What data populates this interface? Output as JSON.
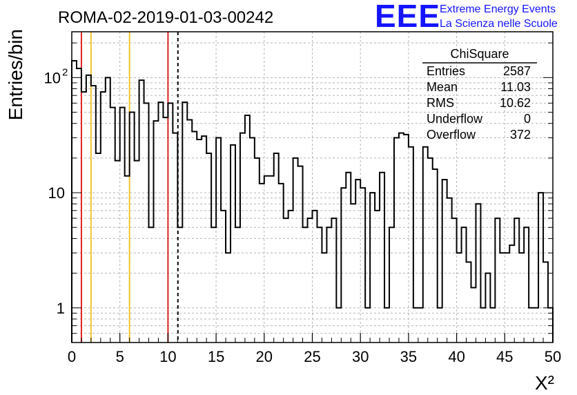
{
  "chart_data": {
    "type": "bar",
    "title": "ROMA-02-2019-01-03-00242",
    "xlabel": "X²",
    "ylabel": "Entries/bin",
    "xlim": [
      0,
      50
    ],
    "ylim": [
      0.5,
      250
    ],
    "yscale": "log",
    "grid": true,
    "bin_width": 0.5,
    "x_ticks": [
      "0",
      "5",
      "10",
      "15",
      "20",
      "25",
      "30",
      "35",
      "40",
      "45",
      "50"
    ],
    "y_ticks": [
      {
        "value": 1,
        "base": "1",
        "exp": ""
      },
      {
        "value": 10,
        "base": "10",
        "exp": ""
      },
      {
        "value": 100,
        "base": "10",
        "exp": "2"
      }
    ],
    "values": [
      140,
      120,
      75,
      105,
      85,
      22,
      75,
      100,
      55,
      19,
      55,
      14,
      50,
      19,
      95,
      60,
      5,
      42,
      61,
      45,
      60,
      33,
      5,
      61,
      43,
      34,
      29,
      31,
      22,
      5,
      30,
      7,
      3,
      26,
      5,
      33,
      47,
      30,
      20,
      12,
      14,
      14,
      22,
      12,
      6,
      7,
      20,
      17,
      5,
      6,
      7,
      5,
      3,
      5,
      6,
      1,
      11,
      15,
      8,
      13,
      11,
      1,
      10,
      7,
      15,
      1,
      5,
      30,
      33,
      32,
      25,
      1,
      1,
      25,
      20,
      16,
      1,
      13,
      9,
      6,
      3,
      5,
      2.5,
      1.5,
      8,
      1,
      2,
      1,
      6,
      3,
      3,
      3.5,
      6,
      3,
      5,
      1,
      1,
      10,
      2.5,
      1
    ],
    "vertical_lines": [
      {
        "x": 1,
        "color": "#e02020",
        "dashed": false
      },
      {
        "x": 2,
        "color": "#f2c230",
        "dashed": false
      },
      {
        "x": 6,
        "color": "#f2c230",
        "dashed": false
      },
      {
        "x": 10,
        "color": "#e02020",
        "dashed": false
      },
      {
        "x": 11.03,
        "color": "#000000",
        "dashed": true
      }
    ],
    "stats": {
      "name": "ChiSquare",
      "rows": [
        {
          "label": "Entries",
          "value": "2587"
        },
        {
          "label": "Mean",
          "value": "11.03"
        },
        {
          "label": "RMS",
          "value": "10.62"
        },
        {
          "label": "Underflow",
          "value": "0"
        },
        {
          "label": "Overflow",
          "value": "372"
        }
      ]
    }
  },
  "logo": {
    "text": "EEE",
    "line1": "Extreme Energy Events",
    "line2": "La Scienza nelle Scuole",
    "color": "#1414ff"
  }
}
